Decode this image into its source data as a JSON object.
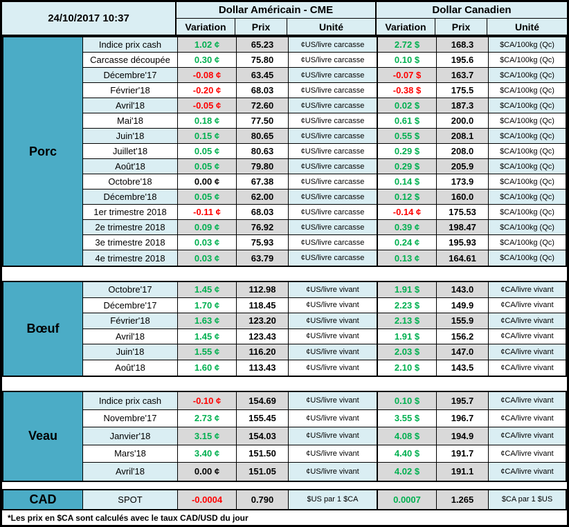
{
  "header": {
    "date": "24/10/2017 10:37",
    "us_title": "Dollar Américain - CME",
    "ca_title": "Dollar Canadien",
    "col_variation": "Variation",
    "col_prix": "Prix",
    "col_unite": "Unité"
  },
  "colors": {
    "section_bg": "#4bacc6",
    "row_tint_label": "#daeef3",
    "row_tint_numeric": "#d9d9d9",
    "positive": "#00b050",
    "negative": "#ff0000",
    "neutral": "#000000"
  },
  "sections": [
    {
      "key": "porc",
      "name": "Porc",
      "rows": [
        {
          "label": "Indice prix cash",
          "us_var": "1.02 ¢",
          "us_trend": "up",
          "us_prix": "65.23",
          "us_unit": "¢US/livre carcasse",
          "ca_var": "2.72 $",
          "ca_trend": "up",
          "ca_prix": "168.3",
          "ca_unit": "$CA/100kg (Qc)"
        },
        {
          "label": "Carcasse découpée",
          "us_var": "0.30 ¢",
          "us_trend": "up",
          "us_prix": "75.80",
          "us_unit": "¢US/livre carcasse",
          "ca_var": "0.10 $",
          "ca_trend": "up",
          "ca_prix": "195.6",
          "ca_unit": "$CA/100kg (Qc)"
        },
        {
          "label": "Décembre'17",
          "us_var": "-0.08 ¢",
          "us_trend": "down",
          "us_prix": "63.45",
          "us_unit": "¢US/livre carcasse",
          "ca_var": "-0.07 $",
          "ca_trend": "down",
          "ca_prix": "163.7",
          "ca_unit": "$CA/100kg (Qc)"
        },
        {
          "label": "Février'18",
          "us_var": "-0.20 ¢",
          "us_trend": "down",
          "us_prix": "68.03",
          "us_unit": "¢US/livre carcasse",
          "ca_var": "-0.38 $",
          "ca_trend": "down",
          "ca_prix": "175.5",
          "ca_unit": "$CA/100kg (Qc)"
        },
        {
          "label": "Avril'18",
          "us_var": "-0.05 ¢",
          "us_trend": "down",
          "us_prix": "72.60",
          "us_unit": "¢US/livre carcasse",
          "ca_var": "0.02 $",
          "ca_trend": "up",
          "ca_prix": "187.3",
          "ca_unit": "$CA/100kg (Qc)"
        },
        {
          "label": "Mai'18",
          "us_var": "0.18 ¢",
          "us_trend": "up",
          "us_prix": "77.50",
          "us_unit": "¢US/livre carcasse",
          "ca_var": "0.61 $",
          "ca_trend": "up",
          "ca_prix": "200.0",
          "ca_unit": "$CA/100kg (Qc)"
        },
        {
          "label": "Juin'18",
          "us_var": "0.15 ¢",
          "us_trend": "up",
          "us_prix": "80.65",
          "us_unit": "¢US/livre carcasse",
          "ca_var": "0.55 $",
          "ca_trend": "up",
          "ca_prix": "208.1",
          "ca_unit": "$CA/100kg (Qc)"
        },
        {
          "label": "Juillet'18",
          "us_var": "0.05 ¢",
          "us_trend": "up",
          "us_prix": "80.63",
          "us_unit": "¢US/livre carcasse",
          "ca_var": "0.29 $",
          "ca_trend": "up",
          "ca_prix": "208.0",
          "ca_unit": "$CA/100kg (Qc)"
        },
        {
          "label": "Août'18",
          "us_var": "0.05 ¢",
          "us_trend": "up",
          "us_prix": "79.80",
          "us_unit": "¢US/livre carcasse",
          "ca_var": "0.29 $",
          "ca_trend": "up",
          "ca_prix": "205.9",
          "ca_unit": "$CA/100kg (Qc)"
        },
        {
          "label": "Octobre'18",
          "us_var": "0.00 ¢",
          "us_trend": "flat",
          "us_prix": "67.38",
          "us_unit": "¢US/livre carcasse",
          "ca_var": "0.14 $",
          "ca_trend": "up",
          "ca_prix": "173.9",
          "ca_unit": "$CA/100kg (Qc)"
        },
        {
          "label": "Décembre'18",
          "us_var": "0.05 ¢",
          "us_trend": "up",
          "us_prix": "62.00",
          "us_unit": "¢US/livre carcasse",
          "ca_var": "0.12 $",
          "ca_trend": "up",
          "ca_prix": "160.0",
          "ca_unit": "$CA/100kg (Qc)"
        },
        {
          "label": "1er trimestre 2018",
          "us_var": "-0.11 ¢",
          "us_trend": "down",
          "us_prix": "68.03",
          "us_unit": "¢US/livre carcasse",
          "ca_var": "-0.14 ¢",
          "ca_trend": "down",
          "ca_prix": "175.53",
          "ca_unit": "$CA/100kg (Qc)"
        },
        {
          "label": "2e trimestre 2018",
          "us_var": "0.09 ¢",
          "us_trend": "up",
          "us_prix": "76.92",
          "us_unit": "¢US/livre carcasse",
          "ca_var": "0.39 ¢",
          "ca_trend": "up",
          "ca_prix": "198.47",
          "ca_unit": "$CA/100kg (Qc)"
        },
        {
          "label": "3e trimestre 2018",
          "us_var": "0.03 ¢",
          "us_trend": "up",
          "us_prix": "75.93",
          "us_unit": "¢US/livre carcasse",
          "ca_var": "0.24 ¢",
          "ca_trend": "up",
          "ca_prix": "195.93",
          "ca_unit": "$CA/100kg (Qc)"
        },
        {
          "label": "4e trimestre 2018",
          "us_var": "0.03 ¢",
          "us_trend": "up",
          "us_prix": "63.79",
          "us_unit": "¢US/livre carcasse",
          "ca_var": "0.13 ¢",
          "ca_trend": "up",
          "ca_prix": "164.61",
          "ca_unit": "$CA/100kg (Qc)"
        }
      ]
    },
    {
      "key": "boeuf",
      "name": "Bœuf",
      "rows": [
        {
          "label": "Octobre'17",
          "us_var": "1.45 ¢",
          "us_trend": "up",
          "us_prix": "112.98",
          "us_unit": "¢US/livre vivant",
          "ca_var": "1.91 $",
          "ca_trend": "up",
          "ca_prix": "143.0",
          "ca_unit": "¢CA/livre vivant"
        },
        {
          "label": "Décembre'17",
          "us_var": "1.70 ¢",
          "us_trend": "up",
          "us_prix": "118.45",
          "us_unit": "¢US/livre vivant",
          "ca_var": "2.23 $",
          "ca_trend": "up",
          "ca_prix": "149.9",
          "ca_unit": "¢CA/livre vivant"
        },
        {
          "label": "Février'18",
          "us_var": "1.63 ¢",
          "us_trend": "up",
          "us_prix": "123.20",
          "us_unit": "¢US/livre vivant",
          "ca_var": "2.13 $",
          "ca_trend": "up",
          "ca_prix": "155.9",
          "ca_unit": "¢CA/livre vivant"
        },
        {
          "label": "Avril'18",
          "us_var": "1.45 ¢",
          "us_trend": "up",
          "us_prix": "123.43",
          "us_unit": "¢US/livre vivant",
          "ca_var": "1.91 $",
          "ca_trend": "up",
          "ca_prix": "156.2",
          "ca_unit": "¢CA/livre vivant"
        },
        {
          "label": "Juin'18",
          "us_var": "1.55 ¢",
          "us_trend": "up",
          "us_prix": "116.20",
          "us_unit": "¢US/livre vivant",
          "ca_var": "2.03 $",
          "ca_trend": "up",
          "ca_prix": "147.0",
          "ca_unit": "¢CA/livre vivant"
        },
        {
          "label": "Août'18",
          "us_var": "1.60 ¢",
          "us_trend": "up",
          "us_prix": "113.43",
          "us_unit": "¢US/livre vivant",
          "ca_var": "2.10 $",
          "ca_trend": "up",
          "ca_prix": "143.5",
          "ca_unit": "¢CA/livre vivant"
        }
      ]
    },
    {
      "key": "veau",
      "name": "Veau",
      "rows": [
        {
          "label": "Indice prix cash",
          "us_var": "-0.10 ¢",
          "us_trend": "down",
          "us_prix": "154.69",
          "us_unit": "¢US/livre vivant",
          "ca_var": "0.10 $",
          "ca_trend": "up",
          "ca_prix": "195.7",
          "ca_unit": "¢CA/livre vivant"
        },
        {
          "label": "Novembre'17",
          "us_var": "2.73 ¢",
          "us_trend": "up",
          "us_prix": "155.45",
          "us_unit": "¢US/livre vivant",
          "ca_var": "3.55 $",
          "ca_trend": "up",
          "ca_prix": "196.7",
          "ca_unit": "¢CA/livre vivant"
        },
        {
          "label": "Janvier'18",
          "us_var": "3.15 ¢",
          "us_trend": "up",
          "us_prix": "154.03",
          "us_unit": "¢US/livre vivant",
          "ca_var": "4.08 $",
          "ca_trend": "up",
          "ca_prix": "194.9",
          "ca_unit": "¢CA/livre vivant"
        },
        {
          "label": "Mars'18",
          "us_var": "3.40 ¢",
          "us_trend": "up",
          "us_prix": "151.50",
          "us_unit": "¢US/livre vivant",
          "ca_var": "4.40 $",
          "ca_trend": "up",
          "ca_prix": "191.7",
          "ca_unit": "¢CA/livre vivant"
        },
        {
          "label": "Avril'18",
          "us_var": "0.00 ¢",
          "us_trend": "flat",
          "us_prix": "151.05",
          "us_unit": "¢US/livre vivant",
          "ca_var": "4.02 $",
          "ca_trend": "up",
          "ca_prix": "191.1",
          "ca_unit": "¢CA/livre vivant"
        }
      ]
    },
    {
      "key": "cad",
      "name": "CAD",
      "rows": [
        {
          "label": "SPOT",
          "us_var": "-0.0004",
          "us_trend": "down",
          "us_prix": "0.790",
          "us_unit": "$US par 1 $CA",
          "ca_var": "0.0007",
          "ca_trend": "up",
          "ca_prix": "1.265",
          "ca_unit": "$CA par 1 $US"
        }
      ]
    }
  ],
  "footnote": "*Les  prix en $CA sont calculés avec le taux CAD/USD du jour"
}
